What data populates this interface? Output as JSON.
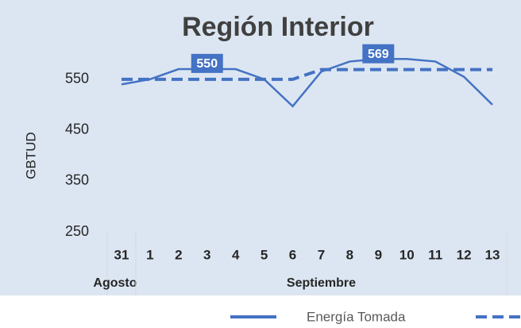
{
  "chart_data": {
    "type": "line",
    "title": "Región Interior",
    "y_label": "GBTUD",
    "categories": [
      "31",
      "1",
      "2",
      "3",
      "4",
      "5",
      "6",
      "7",
      "8",
      "9",
      "10",
      "11",
      "12",
      "13"
    ],
    "groups": [
      {
        "label": "Agosto",
        "span": 1
      },
      {
        "label": "Septiembre",
        "span": 13
      }
    ],
    "series": [
      {
        "name": "Energía Tomada",
        "color": "#4472c4",
        "dash": false,
        "values": [
          540,
          550,
          570,
          570,
          570,
          550,
          497,
          565,
          585,
          590,
          590,
          585,
          555,
          500
        ]
      },
      {
        "color": "#4472c4",
        "dash": true,
        "values": [
          550,
          550,
          550,
          550,
          550,
          550,
          550,
          569,
          569,
          569,
          569,
          569,
          569,
          569
        ],
        "label_indices": [
          3,
          9
        ]
      }
    ],
    "ylim": [
      250,
      620
    ],
    "yticks": [
      250,
      350,
      450,
      550
    ]
  }
}
